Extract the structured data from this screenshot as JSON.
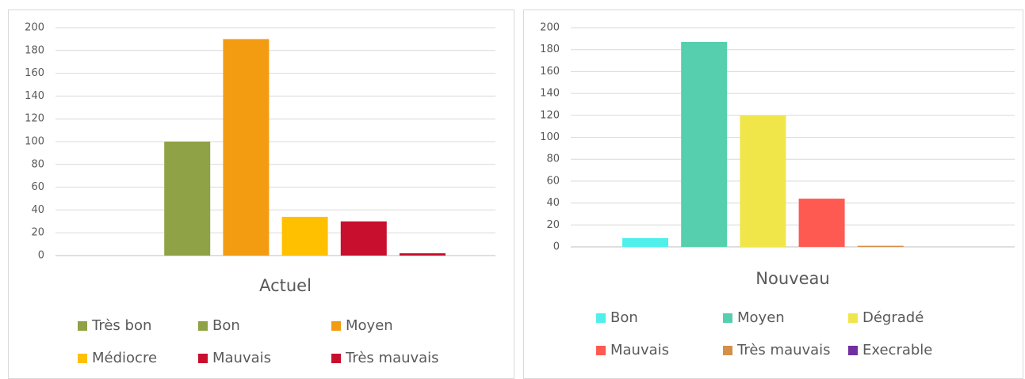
{
  "chart_data": [
    {
      "type": "bar",
      "categories": [
        "Actuel"
      ],
      "ylim": [
        0,
        200
      ],
      "yticks": [
        0,
        20,
        40,
        60,
        80,
        100,
        120,
        140,
        160,
        180,
        200
      ],
      "grid": true,
      "series": [
        {
          "name": "Très bon",
          "color": "#8fa246",
          "values": [
            0
          ]
        },
        {
          "name": "Bon",
          "color": "#8fa246",
          "values": [
            100
          ]
        },
        {
          "name": "Moyen",
          "color": "#f39c12",
          "values": [
            190
          ]
        },
        {
          "name": "Médiocre",
          "color": "#ffc000",
          "values": [
            34
          ]
        },
        {
          "name": "Mauvais",
          "color": "#c8102e",
          "values": [
            30
          ]
        },
        {
          "name": "Très mauvais",
          "color": "#c8102e",
          "values": [
            2
          ]
        }
      ]
    },
    {
      "type": "bar",
      "categories": [
        "Nouveau"
      ],
      "ylim": [
        0,
        200
      ],
      "yticks": [
        0,
        20,
        40,
        60,
        80,
        100,
        120,
        140,
        160,
        180,
        200
      ],
      "grid": true,
      "series": [
        {
          "name": "Bon",
          "color": "#4ff0ec",
          "values": [
            8
          ]
        },
        {
          "name": "Moyen",
          "color": "#55cfae",
          "values": [
            187
          ]
        },
        {
          "name": "Dégradé",
          "color": "#f0e64a",
          "values": [
            120
          ]
        },
        {
          "name": "Mauvais",
          "color": "#ff5a52",
          "values": [
            44
          ]
        },
        {
          "name": "Très mauvais",
          "color": "#d4904a",
          "values": [
            1
          ]
        },
        {
          "name": "Execrable",
          "color": "#7030a0",
          "values": [
            0
          ]
        }
      ]
    }
  ]
}
